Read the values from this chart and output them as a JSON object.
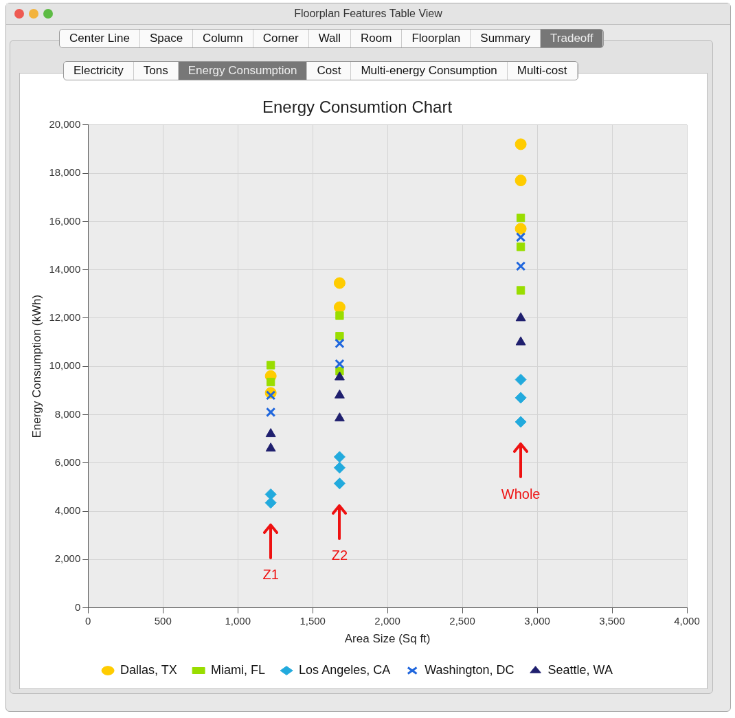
{
  "chart_data": {
    "type": "scatter",
    "title": "Energy Consumtion Chart",
    "xlabel": "Area Size (Sq ft)",
    "ylabel": "Energy Consumption (kWh)",
    "xlim": [
      0,
      4000
    ],
    "xticks": [
      0,
      500,
      {
        "value": 1000,
        "label": "1,000"
      },
      {
        "value": 1500,
        "label": "1,500"
      },
      {
        "value": 2000,
        "label": "2,000"
      },
      {
        "value": 2500,
        "label": "2,500"
      },
      {
        "value": 3000,
        "label": "3,000"
      },
      {
        "value": 3500,
        "label": "3,500"
      },
      {
        "value": 4000,
        "label": "4,000"
      }
    ],
    "ylim": [
      0,
      20000
    ],
    "yticks": [
      0,
      {
        "value": 2000,
        "label": "2,000"
      },
      {
        "value": 4000,
        "label": "4,000"
      },
      {
        "value": 6000,
        "label": "6,000"
      },
      {
        "value": 8000,
        "label": "8,000"
      },
      {
        "value": 10000,
        "label": "10,000"
      },
      {
        "value": 12000,
        "label": "12,000"
      },
      {
        "value": 14000,
        "label": "14,000"
      },
      {
        "value": 16000,
        "label": "16,000"
      },
      {
        "value": 18000,
        "label": "18,000"
      },
      {
        "value": 20000,
        "label": "20,000"
      }
    ],
    "grid": true,
    "legend": "bottom",
    "series": [
      {
        "name": "Dallas, TX",
        "color": "#ffcc00",
        "marker": "circle",
        "x": [
          1220,
          1220,
          1680,
          1680,
          2890,
          2890,
          2890
        ],
        "values": [
          9600,
          8900,
          13450,
          12450,
          19200,
          17700,
          15700
        ]
      },
      {
        "name": "Miami, FL",
        "color": "#99dd00",
        "marker": "square",
        "x": [
          1220,
          1220,
          1680,
          1680,
          1680,
          2890,
          2890,
          2890
        ],
        "values": [
          10050,
          9350,
          12100,
          11250,
          9800,
          16150,
          14950,
          13150
        ]
      },
      {
        "name": "Los Angeles, CA",
        "color": "#22aadd",
        "marker": "diamond",
        "x": [
          1220,
          1220,
          1680,
          1680,
          1680,
          2890,
          2890,
          2890
        ],
        "values": [
          4700,
          4350,
          6250,
          5800,
          5150,
          9450,
          8700,
          7700
        ]
      },
      {
        "name": "Washington, DC",
        "color": "#1f66dd",
        "marker": "cross",
        "x": [
          1220,
          1220,
          1680,
          1680,
          2890,
          2890
        ],
        "values": [
          8800,
          8100,
          10950,
          10100,
          15350,
          14150
        ]
      },
      {
        "name": "Seattle, WA",
        "color": "#1f1f6e",
        "marker": "triangle",
        "x": [
          1220,
          1220,
          1680,
          1680,
          1680,
          2890,
          2890
        ],
        "values": [
          7200,
          6600,
          9550,
          8800,
          7850,
          12000,
          11000
        ]
      }
    ],
    "annotations": [
      "Z1",
      "Z2",
      "Whole",
      "Floorplan Features Table View",
      "Center Line",
      "Space",
      "Column",
      "Corner",
      "Wall",
      "Room",
      "Floorplan",
      "Summary",
      "Tradeoff",
      "Electricity",
      "Tons",
      "Energy Consumption",
      "Cost",
      "Multi-energy Consumption",
      "Multi-cost"
    ]
  }
}
